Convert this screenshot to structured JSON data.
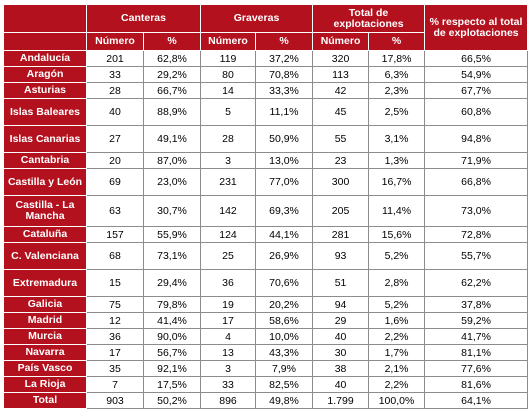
{
  "headers": {
    "canteras": "Canteras",
    "graveras": "Graveras",
    "total": "Total de explotaciones",
    "pct_total": "% respecto al total de explotaciones",
    "numero": "Número",
    "pct": "%"
  },
  "rows": [
    {
      "region": "Andalucía",
      "c_num": "201",
      "c_pct": "62,8%",
      "g_num": "119",
      "g_pct": "37,2%",
      "t_num": "320",
      "t_pct": "17,8%",
      "share": "66,5%"
    },
    {
      "region": "Aragón",
      "c_num": "33",
      "c_pct": "29,2%",
      "g_num": "80",
      "g_pct": "70,8%",
      "t_num": "113",
      "t_pct": "6,3%",
      "share": "54,9%"
    },
    {
      "region": "Asturias",
      "c_num": "28",
      "c_pct": "66,7%",
      "g_num": "14",
      "g_pct": "33,3%",
      "t_num": "42",
      "t_pct": "2,3%",
      "share": "67,7%"
    },
    {
      "region": "Islas Baleares",
      "c_num": "40",
      "c_pct": "88,9%",
      "g_num": "5",
      "g_pct": "11,1%",
      "t_num": "45",
      "t_pct": "2,5%",
      "share": "60,8%"
    },
    {
      "region": "Islas Canarias",
      "c_num": "27",
      "c_pct": "49,1%",
      "g_num": "28",
      "g_pct": "50,9%",
      "t_num": "55",
      "t_pct": "3,1%",
      "share": "94,8%"
    },
    {
      "region": "Cantabria",
      "c_num": "20",
      "c_pct": "87,0%",
      "g_num": "3",
      "g_pct": "13,0%",
      "t_num": "23",
      "t_pct": "1,3%",
      "share": "71,9%"
    },
    {
      "region": "Castilla y León",
      "c_num": "69",
      "c_pct": "23,0%",
      "g_num": "231",
      "g_pct": "77,0%",
      "t_num": "300",
      "t_pct": "16,7%",
      "share": "66,8%"
    },
    {
      "region": "Castilla - La Mancha",
      "c_num": "63",
      "c_pct": "30,7%",
      "g_num": "142",
      "g_pct": "69,3%",
      "t_num": "205",
      "t_pct": "11,4%",
      "share": "73,0%"
    },
    {
      "region": "Cataluña",
      "c_num": "157",
      "c_pct": "55,9%",
      "g_num": "124",
      "g_pct": "44,1%",
      "t_num": "281",
      "t_pct": "15,6%",
      "share": "72,8%"
    },
    {
      "region": "C. Valenciana",
      "c_num": "68",
      "c_pct": "73,1%",
      "g_num": "25",
      "g_pct": "26,9%",
      "t_num": "93",
      "t_pct": "5,2%",
      "share": "55,7%"
    },
    {
      "region": "Extremadura",
      "c_num": "15",
      "c_pct": "29,4%",
      "g_num": "36",
      "g_pct": "70,6%",
      "t_num": "51",
      "t_pct": "2,8%",
      "share": "62,2%"
    },
    {
      "region": "Galicia",
      "c_num": "75",
      "c_pct": "79,8%",
      "g_num": "19",
      "g_pct": "20,2%",
      "t_num": "94",
      "t_pct": "5,2%",
      "share": "37,8%"
    },
    {
      "region": "Madrid",
      "c_num": "12",
      "c_pct": "41,4%",
      "g_num": "17",
      "g_pct": "58,6%",
      "t_num": "29",
      "t_pct": "1,6%",
      "share": "59,2%"
    },
    {
      "region": "Murcia",
      "c_num": "36",
      "c_pct": "90,0%",
      "g_num": "4",
      "g_pct": "10,0%",
      "t_num": "40",
      "t_pct": "2,2%",
      "share": "41,7%"
    },
    {
      "region": "Navarra",
      "c_num": "17",
      "c_pct": "56,7%",
      "g_num": "13",
      "g_pct": "43,3%",
      "t_num": "30",
      "t_pct": "1,7%",
      "share": "81,1%"
    },
    {
      "region": "País Vasco",
      "c_num": "35",
      "c_pct": "92,1%",
      "g_num": "3",
      "g_pct": "7,9%",
      "t_num": "38",
      "t_pct": "2,1%",
      "share": "77,6%"
    },
    {
      "region": "La Rioja",
      "c_num": "7",
      "c_pct": "17,5%",
      "g_num": "33",
      "g_pct": "82,5%",
      "t_num": "40",
      "t_pct": "2,2%",
      "share": "81,6%"
    },
    {
      "region": "Total",
      "c_num": "903",
      "c_pct": "50,2%",
      "g_num": "896",
      "g_pct": "49,8%",
      "t_num": "1.799",
      "t_pct": "100,0%",
      "share": "64,1%"
    }
  ]
}
